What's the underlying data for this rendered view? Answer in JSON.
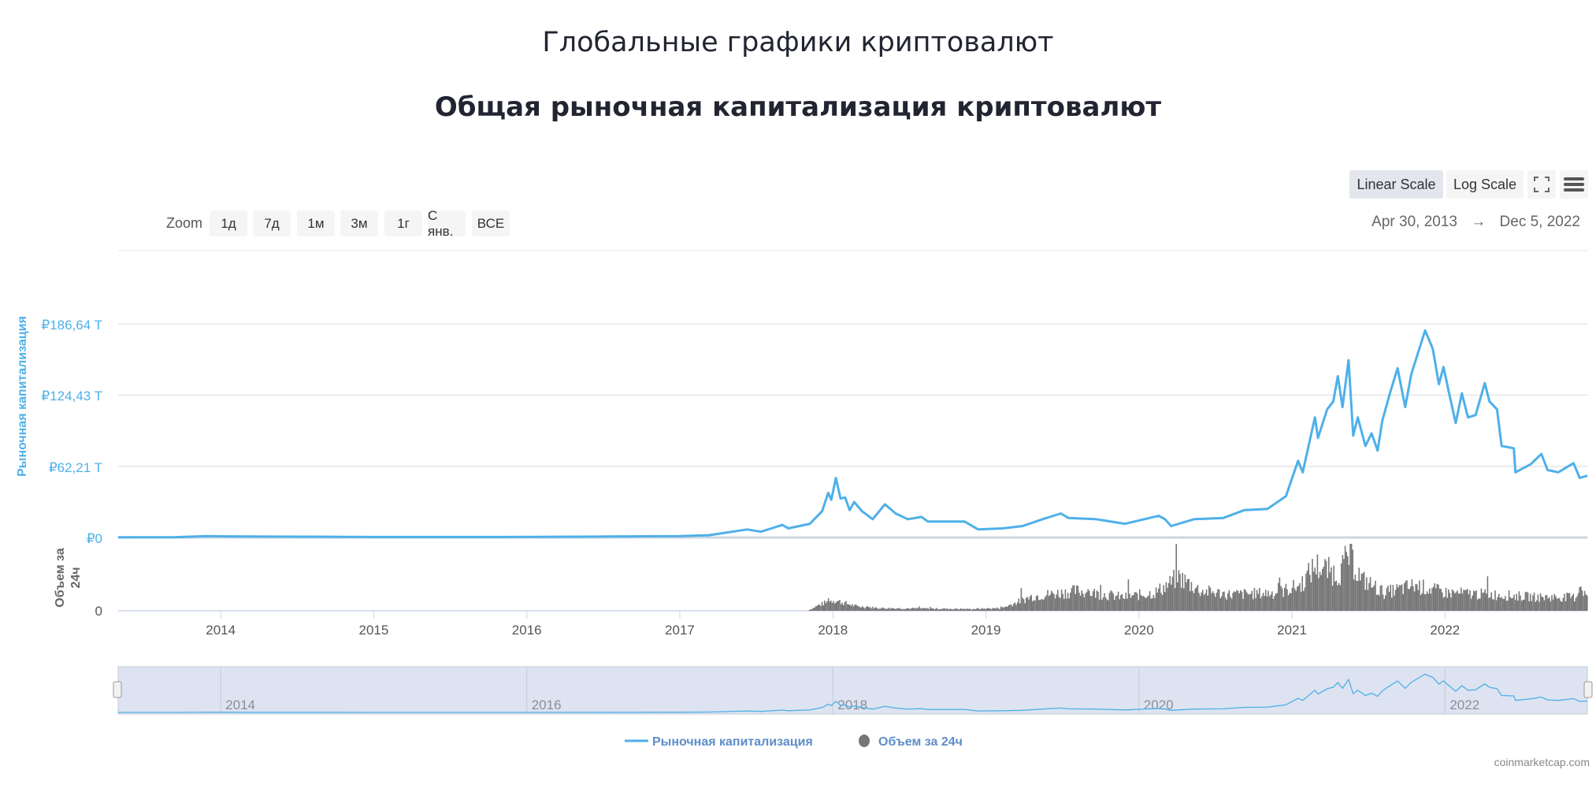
{
  "header": {
    "title": "Глобальные графики криптовалют",
    "subtitle": "Общая рыночная капитализация криптовалют"
  },
  "toolbar": {
    "linear_scale": "Linear Scale",
    "log_scale": "Log Scale",
    "fullscreen_icon": "fullscreen-icon",
    "menu_icon": "hamburger-menu-icon",
    "zoom_label": "Zoom",
    "zoom_buttons": [
      "1д",
      "7д",
      "1м",
      "3м",
      "1г",
      "С янв.",
      "ВСЕ"
    ],
    "date_from": "Apr 30, 2013",
    "arrow": "→",
    "date_to": "Dec 5, 2022"
  },
  "colors": {
    "market_cap": "#4eb0e9",
    "volume": "#777777",
    "navigator_bg": "#dde3f0",
    "legend_text": "#5d8ec9"
  },
  "chart_data": {
    "type": "line",
    "title": "Общая рыночная капитализация криптовалют",
    "xlabel": "",
    "ylabel": "Рыночная капитализация",
    "y2label": "Объем за 24ч",
    "yticks": [
      "₽0",
      "₽62,21 T",
      "₽124,43 T",
      "₽186,64 T"
    ],
    "ytick_values": [
      0,
      62.21,
      124.43,
      186.64
    ],
    "y2ticks": [
      "0"
    ],
    "xticks": [
      "2014",
      "2015",
      "2016",
      "2017",
      "2018",
      "2019",
      "2020",
      "2021",
      "2022"
    ],
    "xlim": [
      2013.33,
      2022.93
    ],
    "ylim": [
      0,
      200
    ],
    "unit": "₽ trillion",
    "grid": true,
    "legend_position": "bottom",
    "legend": [
      "Рыночная капитализация",
      "Объем за 24ч"
    ],
    "navigator_ticks": [
      "2014",
      "2016",
      "2018",
      "2020",
      "2022"
    ],
    "credit": "coinmarketcap.com",
    "series": [
      {
        "name": "Рыночная капитализация",
        "x": [
          2013.33,
          2013.7,
          2013.9,
          2014.0,
          2014.2,
          2014.6,
          2015.0,
          2015.5,
          2016.0,
          2016.5,
          2017.0,
          2017.19,
          2017.44,
          2017.53,
          2017.67,
          2017.71,
          2017.85,
          2017.93,
          2017.97,
          2017.99,
          2018.02,
          2018.05,
          2018.08,
          2018.11,
          2018.14,
          2018.19,
          2018.26,
          2018.34,
          2018.41,
          2018.49,
          2018.58,
          2018.62,
          2018.86,
          2018.95,
          2019.11,
          2019.24,
          2019.37,
          2019.49,
          2019.54,
          2019.72,
          2019.91,
          2020.13,
          2020.17,
          2020.21,
          2020.36,
          2020.55,
          2020.69,
          2020.84,
          2020.96,
          2021.04,
          2021.07,
          2021.15,
          2021.17,
          2021.23,
          2021.27,
          2021.3,
          2021.33,
          2021.37,
          2021.4,
          2021.43,
          2021.48,
          2021.52,
          2021.56,
          2021.59,
          2021.64,
          2021.69,
          2021.74,
          2021.78,
          2021.87,
          2021.92,
          2021.96,
          2021.99,
          2022.03,
          2022.07,
          2022.11,
          2022.15,
          2022.2,
          2022.26,
          2022.29,
          2022.34,
          2022.37,
          2022.45,
          2022.46,
          2022.56,
          2022.63,
          2022.67,
          2022.74,
          2022.84,
          2022.88,
          2022.93
        ],
        "values": [
          0.2,
          0.3,
          1.2,
          1.0,
          0.8,
          0.7,
          0.4,
          0.4,
          0.5,
          0.8,
          1.2,
          2,
          7,
          5,
          11,
          8,
          12,
          23,
          39,
          33,
          52,
          34,
          35,
          24,
          31,
          23,
          16,
          29,
          21,
          16,
          18,
          14,
          14,
          7,
          8,
          10,
          16,
          21,
          17,
          16,
          12,
          19,
          16,
          10,
          16,
          17,
          24,
          25,
          36,
          67,
          57,
          105,
          87,
          112,
          119,
          141,
          114,
          155,
          89,
          105,
          80,
          91,
          76,
          102,
          126,
          148,
          114,
          143,
          181,
          165,
          134,
          149,
          124,
          100,
          126,
          105,
          107,
          135,
          119,
          112,
          80,
          78,
          57,
          64,
          73,
          59,
          57,
          65,
          52,
          54
        ]
      },
      {
        "name": "Объем за 24ч",
        "value_scale": "relative (0–1, axis unlabeled except 0)",
        "x": [
          2013.33,
          2017.83,
          2017.9,
          2018.0,
          2018.15,
          2018.3,
          2018.9,
          2019.1,
          2019.3,
          2019.6,
          2019.9,
          2020.1,
          2020.2,
          2020.25,
          2020.4,
          2020.6,
          2020.9,
          2021.05,
          2021.15,
          2021.3,
          2021.37,
          2021.45,
          2021.6,
          2021.8,
          2022.0,
          2022.3,
          2022.6,
          2022.85,
          2022.88,
          2022.93
        ],
        "values": [
          0,
          0,
          0.06,
          0.12,
          0.05,
          0.03,
          0.02,
          0.03,
          0.16,
          0.22,
          0.15,
          0.2,
          0.3,
          0.38,
          0.22,
          0.18,
          0.2,
          0.28,
          0.5,
          0.4,
          0.62,
          0.35,
          0.2,
          0.28,
          0.2,
          0.18,
          0.15,
          0.15,
          0.3,
          0.12
        ]
      }
    ]
  }
}
